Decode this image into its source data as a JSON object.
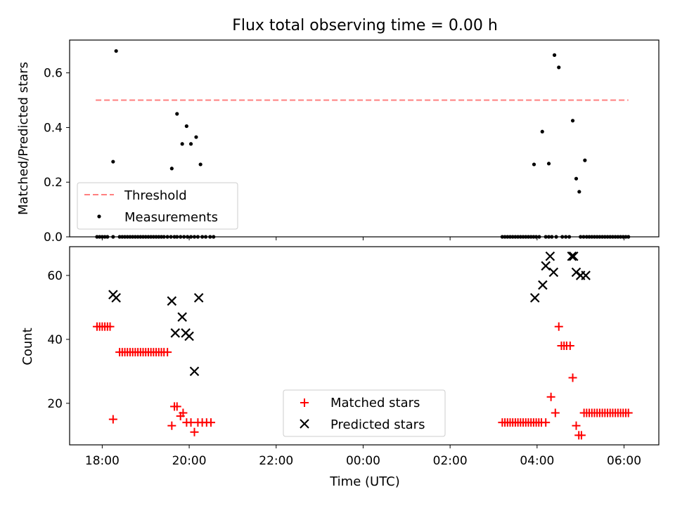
{
  "chart_data": [
    {
      "type": "scatter",
      "title": "Flux total observing time = 0.00 h",
      "ylabel": "Matched/Predicted stars",
      "xlabel": "",
      "x_unit": "hours since 18:00 UTC",
      "xlim": [
        -0.75,
        12.8
      ],
      "ylim": [
        0,
        0.72
      ],
      "yticks": [
        0.0,
        0.2,
        0.4,
        0.6
      ],
      "ytick_labels": [
        "0.0",
        "0.2",
        "0.4",
        "0.6"
      ],
      "xticks": [
        0,
        2,
        4,
        6,
        8,
        10,
        12
      ],
      "threshold": {
        "name": "Threshold",
        "value": 0.5,
        "x_range": [
          -0.15,
          12.1
        ],
        "color": "#ff7f7f"
      },
      "legend": {
        "position": "lower-left",
        "entries": [
          "Threshold",
          "Measurements"
        ]
      },
      "series": [
        {
          "name": "Measurements",
          "color": "#000000",
          "x": [
            -0.12,
            -0.06,
            0.0,
            0.06,
            0.12,
            0.25,
            0.4,
            0.46,
            0.52,
            0.58,
            0.64,
            0.7,
            0.76,
            0.82,
            0.88,
            0.94,
            1.0,
            1.06,
            1.12,
            1.18,
            1.24,
            1.3,
            1.36,
            1.42,
            1.5,
            1.58,
            1.66,
            1.72,
            1.8,
            1.88,
            1.96,
            2.04,
            2.12,
            2.2,
            2.3,
            2.38,
            2.48,
            2.56,
            9.2,
            9.26,
            9.32,
            9.38,
            9.44,
            9.5,
            9.56,
            9.62,
            9.68,
            9.74,
            9.8,
            9.86,
            9.92,
            9.98,
            10.05,
            10.2,
            10.27,
            10.34,
            10.44,
            10.66,
            10.74,
            11.0,
            11.07,
            11.14,
            11.2,
            11.26,
            11.32,
            11.38,
            11.44,
            11.5,
            11.56,
            11.62,
            11.68,
            11.74,
            11.8,
            11.86,
            11.92,
            11.98,
            12.04,
            12.1,
            0.25,
            0.32,
            1.6,
            1.72,
            1.84,
            1.94,
            2.04,
            2.16,
            2.26,
            9.93,
            10.12,
            10.27,
            10.4,
            10.5,
            10.58,
            10.82,
            10.9,
            10.97,
            11.1
          ],
          "y": [
            0,
            0,
            0,
            0,
            0,
            0,
            0,
            0,
            0,
            0,
            0,
            0,
            0,
            0,
            0,
            0,
            0,
            0,
            0,
            0,
            0,
            0,
            0,
            0,
            0,
            0,
            0,
            0,
            0,
            0,
            0,
            0,
            0,
            0,
            0,
            0,
            0,
            0,
            0,
            0,
            0,
            0,
            0,
            0,
            0,
            0,
            0,
            0,
            0,
            0,
            0,
            0,
            0,
            0,
            0,
            0,
            0,
            0,
            0,
            0,
            0,
            0,
            0,
            0,
            0,
            0,
            0,
            0,
            0,
            0,
            0,
            0,
            0,
            0,
            0,
            0,
            0,
            0,
            0.275,
            0.68,
            0.25,
            0.45,
            0.34,
            0.405,
            0.34,
            0.365,
            0.265,
            0.265,
            0.385,
            0.268,
            0.665,
            0.62,
            0,
            0.425,
            0.213,
            0.165,
            0.28
          ]
        }
      ]
    },
    {
      "type": "scatter",
      "title": "",
      "ylabel": "Count",
      "xlabel": "Time (UTC)",
      "x_unit": "hours since 18:00 UTC",
      "xlim": [
        -0.75,
        12.8
      ],
      "ylim": [
        7,
        69
      ],
      "yticks": [
        20,
        40,
        60
      ],
      "ytick_labels": [
        "20",
        "40",
        "60"
      ],
      "xticks": [
        0,
        2,
        4,
        6,
        8,
        10,
        12
      ],
      "xtick_labels": [
        "18:00",
        "20:00",
        "22:00",
        "00:00",
        "02:00",
        "04:00",
        "06:00"
      ],
      "legend": {
        "position": "lower-center",
        "entries": [
          "Matched stars",
          "Predicted stars"
        ]
      },
      "series": [
        {
          "name": "Matched stars",
          "marker": "plus",
          "color": "#ff0000",
          "x": [
            -0.12,
            -0.06,
            0.0,
            0.06,
            0.12,
            0.18,
            0.25,
            0.4,
            0.46,
            0.52,
            0.58,
            0.64,
            0.7,
            0.76,
            0.82,
            0.88,
            0.94,
            1.0,
            1.06,
            1.12,
            1.18,
            1.24,
            1.3,
            1.36,
            1.42,
            1.5,
            1.6,
            1.66,
            1.72,
            1.8,
            1.86,
            1.94,
            2.04,
            2.12,
            2.2,
            2.3,
            2.4,
            2.5,
            9.2,
            9.26,
            9.32,
            9.38,
            9.44,
            9.5,
            9.56,
            9.62,
            9.68,
            9.74,
            9.8,
            9.86,
            9.92,
            9.98,
            10.04,
            10.1,
            10.2,
            10.32,
            10.42,
            10.5,
            10.56,
            10.62,
            10.68,
            10.76,
            10.82,
            10.9,
            10.96,
            11.02,
            11.08,
            11.14,
            11.2,
            11.26,
            11.32,
            11.38,
            11.44,
            11.5,
            11.56,
            11.62,
            11.68,
            11.74,
            11.8,
            11.86,
            11.92,
            11.98,
            12.04,
            12.1
          ],
          "y": [
            44,
            44,
            44,
            44,
            44,
            44,
            15,
            36,
            36,
            36,
            36,
            36,
            36,
            36,
            36,
            36,
            36,
            36,
            36,
            36,
            36,
            36,
            36,
            36,
            36,
            36,
            13,
            19,
            19,
            16,
            17,
            14,
            14,
            11,
            14,
            14,
            14,
            14,
            14,
            14,
            14,
            14,
            14,
            14,
            14,
            14,
            14,
            14,
            14,
            14,
            14,
            14,
            14,
            14,
            14,
            22,
            17,
            44,
            38,
            38,
            38,
            38,
            28,
            13,
            10,
            10,
            17,
            17,
            17,
            17,
            17,
            17,
            17,
            17,
            17,
            17,
            17,
            17,
            17,
            17,
            17,
            17,
            17,
            17
          ]
        },
        {
          "name": "Predicted stars",
          "marker": "x",
          "color": "#000000",
          "x": [
            0.25,
            0.32,
            1.6,
            1.68,
            1.84,
            1.92,
            2.0,
            2.12,
            2.22,
            9.95,
            10.13,
            10.2,
            10.3,
            10.38,
            10.8,
            10.84,
            10.9,
            11.0,
            11.12
          ],
          "y": [
            54,
            53,
            52,
            42,
            47,
            42,
            41,
            30,
            53,
            53,
            57,
            63,
            66,
            61,
            66,
            66,
            61,
            60,
            60
          ]
        }
      ]
    }
  ]
}
